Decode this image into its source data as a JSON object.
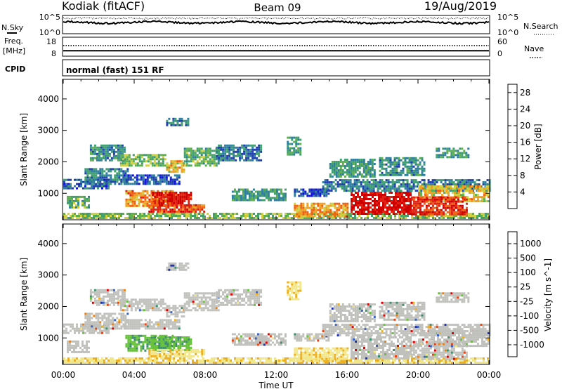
{
  "header": {
    "station": "Kodiak (fitACF)",
    "beam": "Beam 09",
    "date": "19/Aug/2019"
  },
  "noise_panel": {
    "left_label": "N.Sky",
    "right_label": "N.Search",
    "left_ticks": [
      "10^5",
      "10^0"
    ],
    "right_ticks": [
      "10^5",
      "10^0"
    ]
  },
  "freq_panel": {
    "left_label_line1": "Freq.",
    "left_label_line2": "[MHz]",
    "left_ticks": [
      "18",
      "8"
    ],
    "right_label": "Nave",
    "right_ticks": [
      "60",
      "0"
    ],
    "freq_mhz": 10.7,
    "nave": 34
  },
  "cpid": {
    "label": "CPID",
    "value": "normal (fast) 151 RF"
  },
  "time_axis": {
    "xlabel": "Time UT",
    "tick_labels": [
      "00:00",
      "04:00",
      "08:00",
      "12:00",
      "16:00",
      "20:00",
      "00:00"
    ]
  },
  "colors": {
    "background": "#ffffff",
    "frame": "#000000",
    "ground_scatter": "#c0c0bc"
  },
  "chart_data": [
    {
      "type": "heatmap",
      "title": "",
      "xlabel": "Time UT",
      "ylabel": "Slant Range [km]",
      "xlim": [
        0,
        24
      ],
      "ylim": [
        180,
        4600
      ],
      "y_ticks": [
        "1000",
        "2000",
        "3000",
        "4000"
      ],
      "colorbar": {
        "label": "Power [dB]",
        "tick_labels": [
          "4",
          "8",
          "12",
          "16",
          "20",
          "24",
          "28"
        ],
        "colors": [
          "#1010e0",
          "#2040b0",
          "#2f7f9f",
          "#3f9f6f",
          "#5faf4f",
          "#cfcf3f",
          "#efa020",
          "#ef6010",
          "#e02010",
          "#d00000"
        ],
        "range": [
          0,
          30
        ]
      },
      "regions": [
        {
          "t0": 0.0,
          "t1": 24.0,
          "r0": 180,
          "r1": 380,
          "value": 14
        },
        {
          "t0": 0.2,
          "t1": 1.4,
          "r0": 580,
          "r1": 920,
          "value": 12
        },
        {
          "t0": 0.0,
          "t1": 2.6,
          "r0": 1180,
          "r1": 1460,
          "value": 6
        },
        {
          "t0": 1.2,
          "t1": 3.6,
          "r0": 1300,
          "r1": 1800,
          "value": 8
        },
        {
          "t0": 3.4,
          "t1": 6.6,
          "r0": 1300,
          "r1": 1600,
          "value": 5
        },
        {
          "t0": 3.5,
          "t1": 6.2,
          "r0": 600,
          "r1": 1100,
          "value": 21
        },
        {
          "t0": 5.0,
          "t1": 7.2,
          "r0": 600,
          "r1": 1050,
          "value": 27
        },
        {
          "t0": 4.8,
          "t1": 8.0,
          "r0": 400,
          "r1": 650,
          "value": 24
        },
        {
          "t0": 1.5,
          "t1": 3.5,
          "r0": 2050,
          "r1": 2550,
          "value": 9
        },
        {
          "t0": 3.2,
          "t1": 5.8,
          "r0": 1900,
          "r1": 2250,
          "value": 14
        },
        {
          "t0": 5.8,
          "t1": 6.8,
          "r0": 1700,
          "r1": 2050,
          "value": 18
        },
        {
          "t0": 6.8,
          "t1": 8.8,
          "r0": 1850,
          "r1": 2450,
          "value": 12
        },
        {
          "t0": 8.6,
          "t1": 11.2,
          "r0": 2050,
          "r1": 2550,
          "value": 8
        },
        {
          "t0": 5.8,
          "t1": 7.0,
          "r0": 3150,
          "r1": 3400,
          "value": 8
        },
        {
          "t0": 9.5,
          "t1": 12.5,
          "r0": 800,
          "r1": 1150,
          "value": 10
        },
        {
          "t0": 12.6,
          "t1": 13.4,
          "r0": 2200,
          "r1": 2800,
          "value": 10
        },
        {
          "t0": 13.0,
          "t1": 15.0,
          "r0": 900,
          "r1": 1150,
          "value": 5
        },
        {
          "t0": 13.0,
          "t1": 16.0,
          "r0": 250,
          "r1": 700,
          "value": 20
        },
        {
          "t0": 15.0,
          "t1": 17.6,
          "r0": 1550,
          "r1": 2100,
          "value": 10
        },
        {
          "t0": 17.8,
          "t1": 20.4,
          "r0": 1550,
          "r1": 2150,
          "value": 9
        },
        {
          "t0": 14.6,
          "t1": 24.0,
          "r0": 1100,
          "r1": 1450,
          "value": 8
        },
        {
          "t0": 20.0,
          "t1": 24.0,
          "r0": 750,
          "r1": 1250,
          "value": 18
        },
        {
          "t0": 16.2,
          "t1": 19.6,
          "r0": 350,
          "r1": 1050,
          "value": 28
        },
        {
          "t0": 19.6,
          "t1": 22.8,
          "r0": 350,
          "r1": 900,
          "value": 25
        },
        {
          "t0": 21.0,
          "t1": 22.8,
          "r0": 2150,
          "r1": 2450,
          "value": 10
        }
      ]
    },
    {
      "type": "heatmap",
      "title": "",
      "xlabel": "Time UT",
      "ylabel": "Slant Range [km]",
      "xlim": [
        0,
        24
      ],
      "ylim": [
        180,
        4600
      ],
      "y_ticks": [
        "1000",
        "2000",
        "3000",
        "4000"
      ],
      "colorbar": {
        "label": "Velocity [m s^-1]",
        "tick_labels": [
          "1000",
          "500",
          "100",
          "25",
          "-25",
          "-100",
          "-500",
          "-1000"
        ],
        "colors": [
          "#1c2fb4",
          "#3a63bf",
          "#3f8f6f",
          "#66c23a",
          "#c2c2be",
          "#f2e68a",
          "#efb020",
          "#ef8010",
          "#ef4010",
          "#e00000"
        ]
      },
      "regions": [
        {
          "t0": 0.0,
          "t1": 24.0,
          "r0": 180,
          "r1": 380,
          "value": -60
        },
        {
          "t0": 0.2,
          "t1": 1.4,
          "r0": 580,
          "r1": 920,
          "value": 0
        },
        {
          "t0": 0.0,
          "t1": 2.6,
          "r0": 1180,
          "r1": 1460,
          "value": 0
        },
        {
          "t0": 1.2,
          "t1": 3.6,
          "r0": 1300,
          "r1": 1800,
          "value": 0
        },
        {
          "t0": 3.4,
          "t1": 6.6,
          "r0": 1300,
          "r1": 1600,
          "value": 0
        },
        {
          "t0": 3.5,
          "t1": 6.2,
          "r0": 600,
          "r1": 1100,
          "value": 80
        },
        {
          "t0": 5.0,
          "t1": 7.2,
          "r0": 600,
          "r1": 1050,
          "value": 60
        },
        {
          "t0": 4.8,
          "t1": 8.0,
          "r0": 400,
          "r1": 650,
          "value": -40
        },
        {
          "t0": 1.5,
          "t1": 3.5,
          "r0": 2050,
          "r1": 2550,
          "value": 0
        },
        {
          "t0": 3.2,
          "t1": 5.8,
          "r0": 1900,
          "r1": 2250,
          "value": 0
        },
        {
          "t0": 5.8,
          "t1": 6.8,
          "r0": 1700,
          "r1": 2050,
          "value": 0
        },
        {
          "t0": 6.8,
          "t1": 8.8,
          "r0": 1850,
          "r1": 2450,
          "value": 0
        },
        {
          "t0": 8.6,
          "t1": 11.2,
          "r0": 2050,
          "r1": 2550,
          "value": 0
        },
        {
          "t0": 5.8,
          "t1": 7.0,
          "r0": 3150,
          "r1": 3400,
          "value": 0
        },
        {
          "t0": 9.5,
          "t1": 12.5,
          "r0": 800,
          "r1": 1150,
          "value": 0
        },
        {
          "t0": 12.6,
          "t1": 13.4,
          "r0": 2200,
          "r1": 2800,
          "value": -60
        },
        {
          "t0": 13.0,
          "t1": 15.0,
          "r0": 900,
          "r1": 1150,
          "value": 0
        },
        {
          "t0": 13.0,
          "t1": 16.0,
          "r0": 250,
          "r1": 700,
          "value": -60
        },
        {
          "t0": 15.0,
          "t1": 17.6,
          "r0": 1550,
          "r1": 2100,
          "value": 0
        },
        {
          "t0": 17.8,
          "t1": 20.4,
          "r0": 1550,
          "r1": 2150,
          "value": 0
        },
        {
          "t0": 14.6,
          "t1": 24.0,
          "r0": 1100,
          "r1": 1450,
          "value": 0
        },
        {
          "t0": 20.0,
          "t1": 24.0,
          "r0": 750,
          "r1": 1250,
          "value": 0
        },
        {
          "t0": 16.2,
          "t1": 19.6,
          "r0": 350,
          "r1": 1050,
          "value": 0
        },
        {
          "t0": 19.6,
          "t1": 22.8,
          "r0": 350,
          "r1": 900,
          "value": 0
        },
        {
          "t0": 21.0,
          "t1": 22.8,
          "r0": 2150,
          "r1": 2450,
          "value": 0
        }
      ]
    }
  ]
}
